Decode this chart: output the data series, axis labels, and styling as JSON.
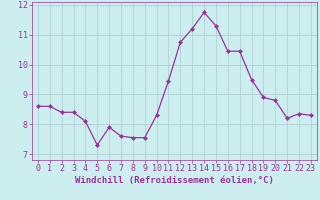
{
  "x": [
    0,
    1,
    2,
    3,
    4,
    5,
    6,
    7,
    8,
    9,
    10,
    11,
    12,
    13,
    14,
    15,
    16,
    17,
    18,
    19,
    20,
    21,
    22,
    23
  ],
  "y": [
    8.6,
    8.6,
    8.4,
    8.4,
    8.1,
    7.3,
    7.9,
    7.6,
    7.55,
    7.55,
    8.3,
    9.45,
    10.75,
    11.2,
    11.75,
    11.3,
    10.45,
    10.45,
    9.5,
    8.9,
    8.8,
    8.2,
    8.35,
    8.3
  ],
  "line_color": "#993399",
  "marker": "D",
  "marker_size": 2,
  "bg_color": "#cceeee",
  "grid_color": "#aacccc",
  "xlabel": "Windchill (Refroidissement éolien,°C)",
  "xlabel_color": "#993399",
  "tick_color": "#993399",
  "ylim": [
    6.8,
    12.1
  ],
  "xlim": [
    -0.5,
    23.5
  ],
  "yticks": [
    7,
    8,
    9,
    10,
    11,
    12
  ],
  "xticks": [
    0,
    1,
    2,
    3,
    4,
    5,
    6,
    7,
    8,
    9,
    10,
    11,
    12,
    13,
    14,
    15,
    16,
    17,
    18,
    19,
    20,
    21,
    22,
    23
  ],
  "spine_color": "#993399",
  "tick_fontsize": 6,
  "xlabel_fontsize": 6.5
}
